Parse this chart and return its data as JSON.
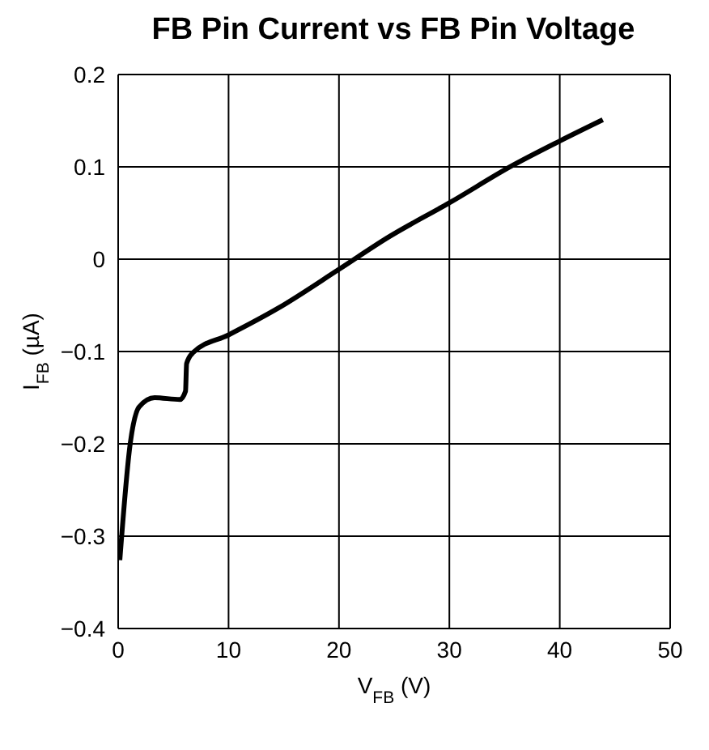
{
  "chart_data": {
    "type": "line",
    "title": "FB Pin Current vs FB Pin Voltage",
    "xlabel": "V$_{FB}$ (V)",
    "ylabel": "I$_{FB}$ (µA)",
    "x": [
      0.15,
      1.1,
      1.9,
      3.3,
      5.6,
      6.1,
      6.2,
      6.8,
      10,
      14.5,
      20,
      24.5,
      30,
      35.8,
      40,
      43.9
    ],
    "series": [
      {
        "color": "#000000",
        "values": [
          -0.326,
          -0.199,
          -0.16,
          -0.15,
          -0.152,
          -0.143,
          -0.113,
          -0.101,
          -0.082,
          -0.053,
          -0.011,
          0.024,
          0.061,
          0.102,
          0.128,
          0.151
        ]
      }
    ],
    "xlim": [
      0,
      50
    ],
    "xticks": [
      0,
      10,
      20,
      30,
      40,
      50
    ],
    "ylim": [
      -0.4,
      0.2
    ],
    "yticks": [
      {
        "value": -0.4,
        "label": "−0.4"
      },
      {
        "value": -0.3,
        "label": "−0.3"
      },
      {
        "value": -0.2,
        "label": "−0.2"
      },
      {
        "value": -0.1,
        "label": "−0.1"
      },
      0,
      0.1,
      0.2
    ],
    "grid": true,
    "marker": "none",
    "line_style": "solid"
  }
}
